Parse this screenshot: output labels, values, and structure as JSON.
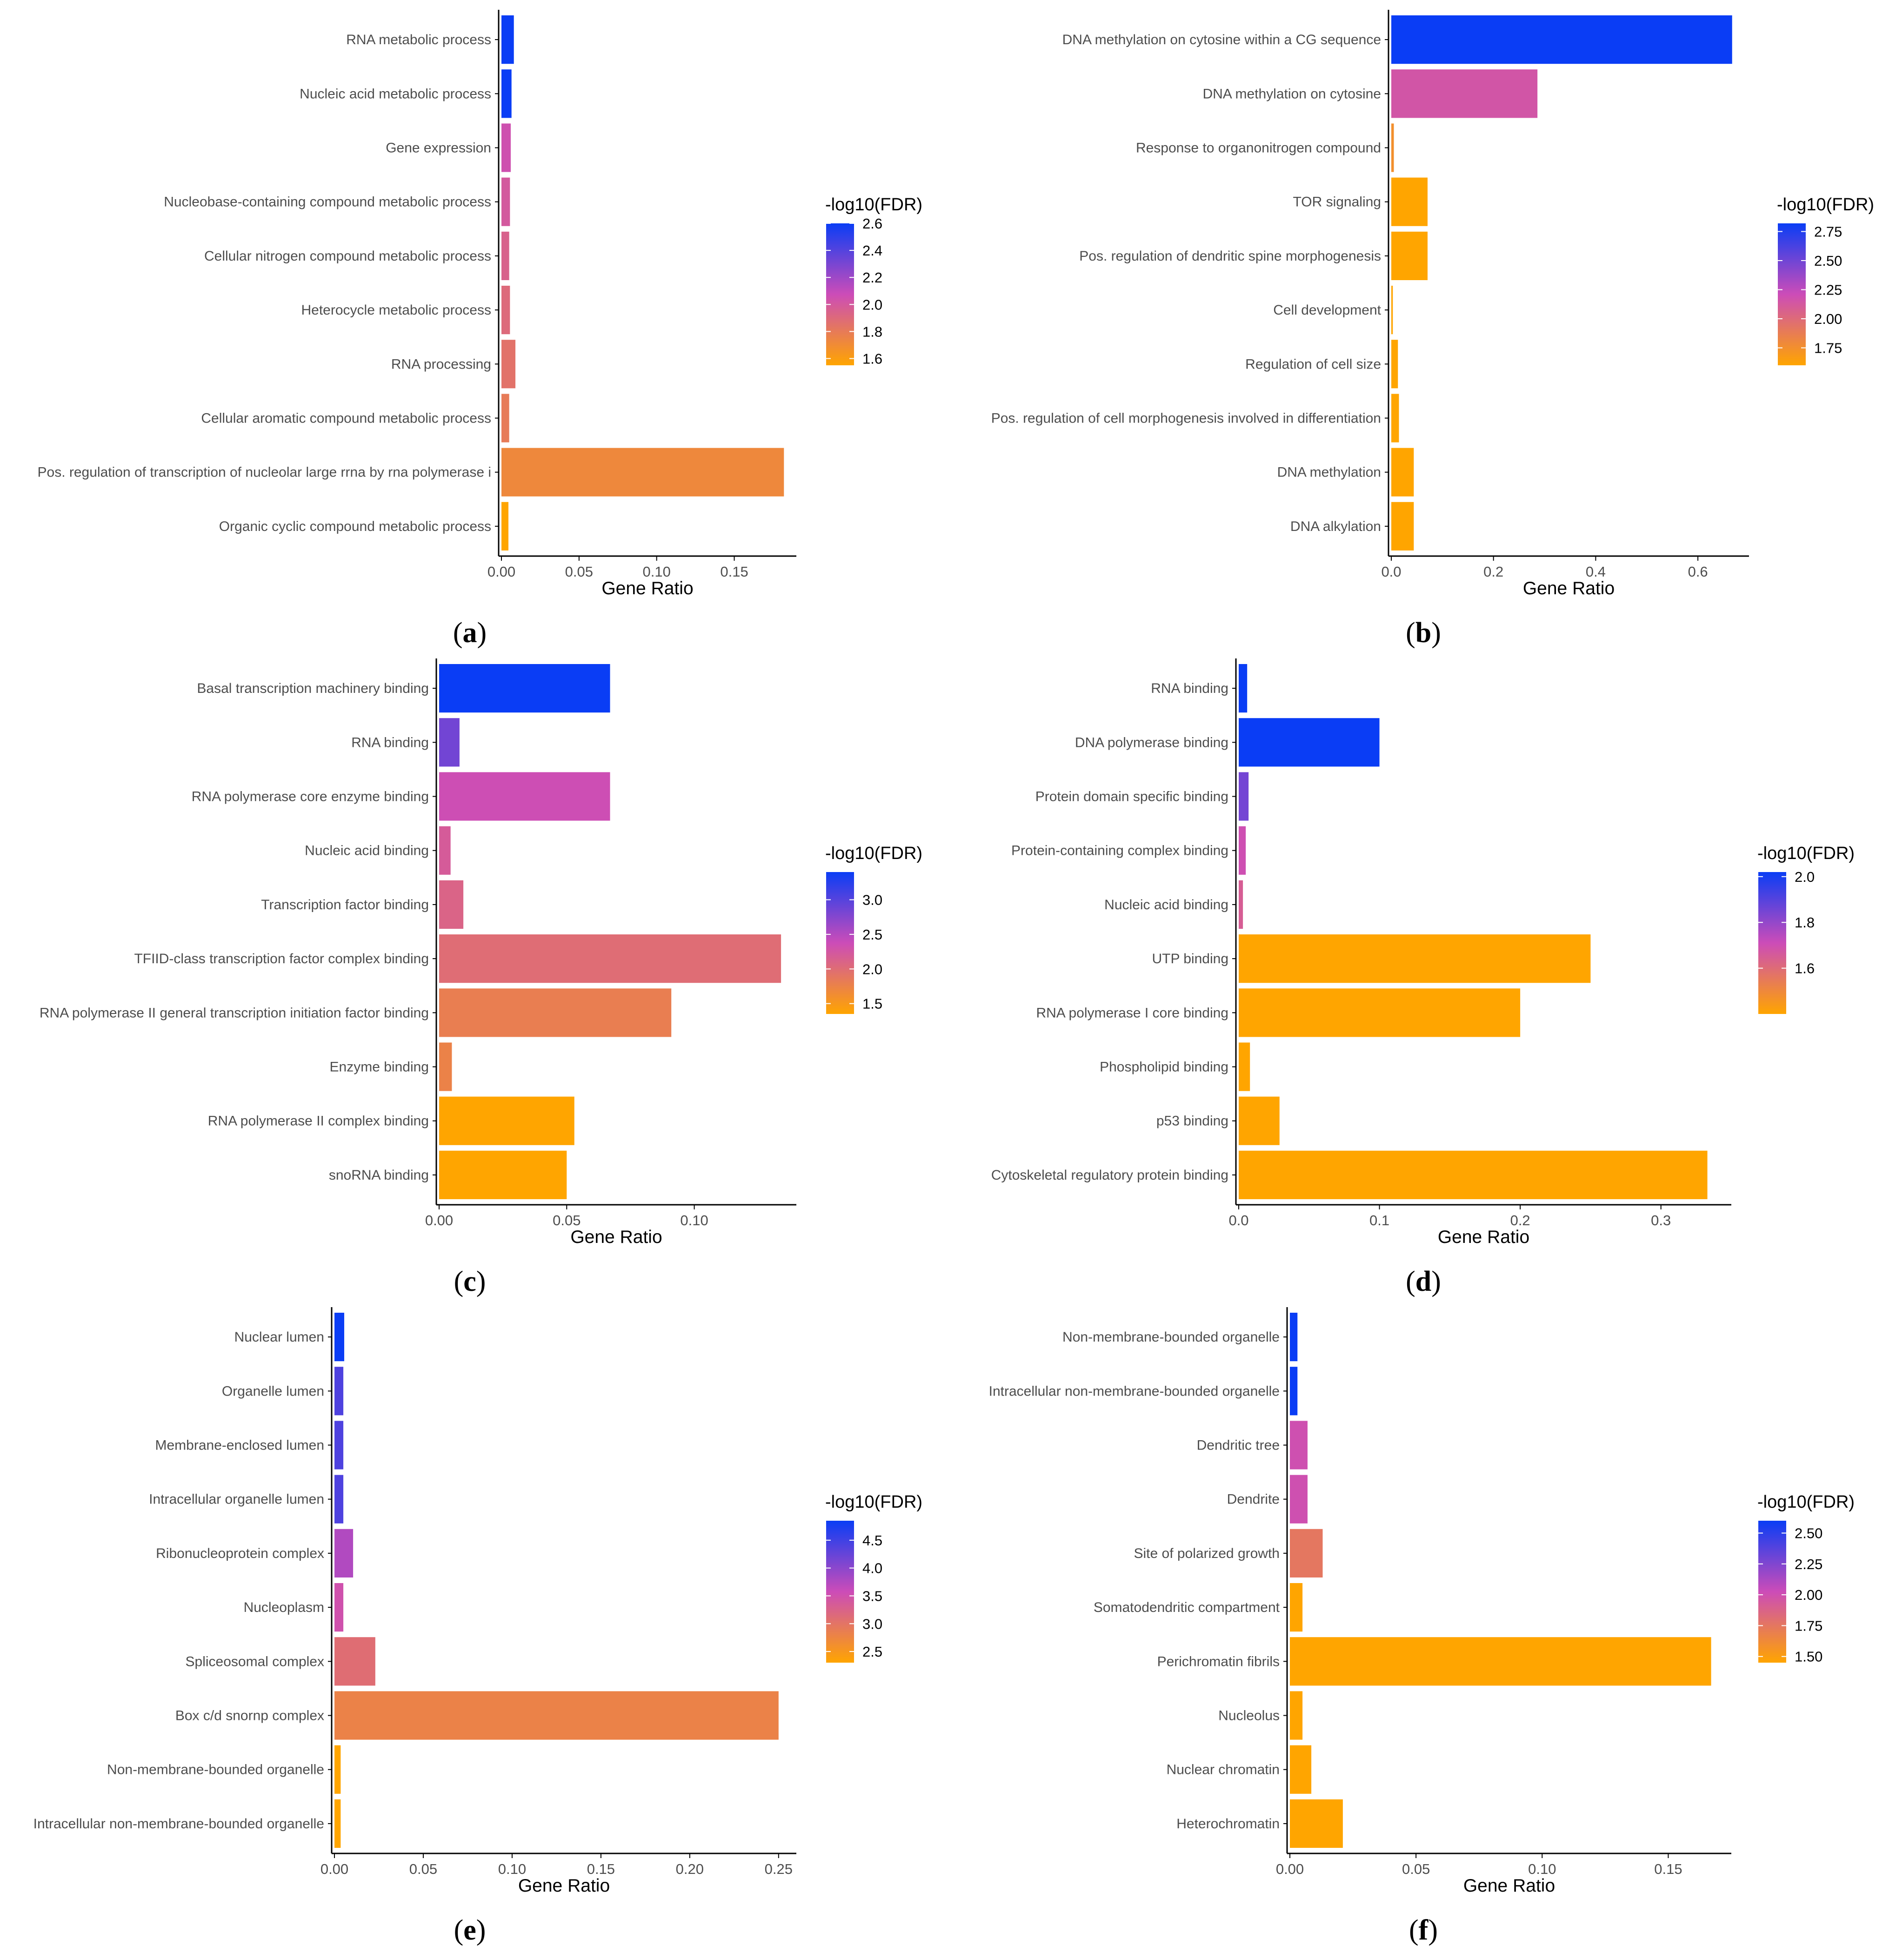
{
  "colors": {
    "scale_low": "#FFA500",
    "scale_mid": "#CC4CB8",
    "scale_high": "#0A3DF5",
    "axis": "#000000",
    "label": "#4d4d4d"
  },
  "chart_data": [
    {
      "id": "a",
      "type": "bar",
      "orientation": "horizontal",
      "panel_label": "a",
      "xlabel": "Gene Ratio",
      "ylabel": "",
      "xlim": [
        0,
        0.19
      ],
      "xticks": [
        0,
        0.05,
        0.1,
        0.15
      ],
      "xtick_labels": [
        "0.00",
        "0.05",
        "0.10",
        "0.15"
      ],
      "categories": [
        "RNA metabolic process",
        "Nucleic acid metabolic process",
        "Gene expression",
        "Nucleobase-containing compound metabolic process",
        "Cellular nitrogen compound metabolic process",
        "Heterocycle metabolic process",
        "RNA processing",
        "Cellular aromatic compound metabolic process",
        "Pos. regulation of transcription of nucleolar large rrna by rna polymerase i",
        "Organic cyclic compound metabolic process"
      ],
      "values": [
        0.008,
        0.0065,
        0.006,
        0.0055,
        0.005,
        0.0055,
        0.009,
        0.005,
        0.182,
        0.0045
      ],
      "color_values": [
        2.6,
        2.6,
        2.05,
        2.0,
        1.95,
        1.9,
        1.85,
        1.8,
        1.72,
        1.55
      ],
      "legend": {
        "title": "-log10(FDR)",
        "min": 1.55,
        "max": 2.6,
        "ticks": [
          1.6,
          1.8,
          2.0,
          2.2,
          2.4,
          2.6
        ],
        "tick_labels": [
          "1.6",
          "1.8",
          "2.0",
          "2.2",
          "2.4",
          "2.6"
        ]
      }
    },
    {
      "id": "b",
      "type": "bar",
      "orientation": "horizontal",
      "panel_label": "b",
      "xlabel": "Gene Ratio",
      "ylabel": "",
      "xlim": [
        0,
        0.7
      ],
      "xticks": [
        0,
        0.2,
        0.4,
        0.6
      ],
      "xtick_labels": [
        "0.0",
        "0.2",
        "0.4",
        "0.6"
      ],
      "categories": [
        "DNA methylation on cytosine within a CG sequence",
        "DNA methylation on cytosine",
        "Response to organonitrogen compound",
        "TOR signaling",
        "Pos. regulation of dendritic spine morphogenesis",
        "Cell development",
        "Regulation of cell size",
        "Pos. regulation of cell morphogenesis involved in differentiation",
        "DNA methylation",
        "DNA alkylation"
      ],
      "values": [
        0.667,
        0.286,
        0.005,
        0.071,
        0.071,
        0.003,
        0.013,
        0.015,
        0.044,
        0.044
      ],
      "color_values": [
        2.82,
        2.15,
        1.75,
        1.6,
        1.6,
        1.6,
        1.6,
        1.6,
        1.6,
        1.6
      ],
      "legend": {
        "title": "-log10(FDR)",
        "min": 1.6,
        "max": 2.82,
        "ticks": [
          1.75,
          2.0,
          2.25,
          2.5,
          2.75
        ],
        "tick_labels": [
          "1.75",
          "2.00",
          "2.25",
          "2.50",
          "2.75"
        ]
      }
    },
    {
      "id": "c",
      "type": "bar",
      "orientation": "horizontal",
      "panel_label": "c",
      "xlabel": "Gene Ratio",
      "ylabel": "",
      "xlim": [
        0,
        0.14
      ],
      "xticks": [
        0,
        0.05,
        0.1
      ],
      "xtick_labels": [
        "0.00",
        "0.05",
        "0.10"
      ],
      "categories": [
        "Basal transcription machinery binding",
        "RNA binding",
        "RNA polymerase core enzyme binding",
        "Nucleic acid binding",
        "Transcription factor binding",
        "TFIID-class transcription factor complex binding",
        "RNA polymerase II general transcription initiation factor binding",
        "Enzyme binding",
        "RNA polymerase II complex binding",
        "snoRNA binding"
      ],
      "values": [
        0.067,
        0.008,
        0.067,
        0.0045,
        0.0095,
        0.134,
        0.091,
        0.005,
        0.053,
        0.05
      ],
      "color_values": [
        3.4,
        2.85,
        2.35,
        2.2,
        2.1,
        2.0,
        1.8,
        1.75,
        1.35,
        1.35
      ],
      "legend": {
        "title": "-log10(FDR)",
        "min": 1.35,
        "max": 3.4,
        "ticks": [
          1.5,
          2.0,
          2.5,
          3.0
        ],
        "tick_labels": [
          "1.5",
          "2.0",
          "2.5",
          "3.0"
        ]
      }
    },
    {
      "id": "d",
      "type": "bar",
      "orientation": "horizontal",
      "panel_label": "d",
      "xlabel": "Gene Ratio",
      "ylabel": "",
      "xlim": [
        0,
        0.35
      ],
      "xticks": [
        0,
        0.1,
        0.2,
        0.3
      ],
      "xtick_labels": [
        "0.0",
        "0.1",
        "0.2",
        "0.3"
      ],
      "categories": [
        "RNA binding",
        "DNA polymerase binding",
        "Protein domain specific binding",
        "Protein-containing complex binding",
        "Nucleic acid binding",
        "UTP binding",
        "RNA polymerase I core binding",
        "Phospholipid binding",
        "p53 binding",
        "Cytoskeletal regulatory protein binding"
      ],
      "values": [
        0.006,
        0.1,
        0.007,
        0.005,
        0.003,
        0.25,
        0.2,
        0.008,
        0.029,
        0.333
      ],
      "color_values": [
        2.02,
        2.02,
        1.85,
        1.7,
        1.65,
        1.4,
        1.4,
        1.4,
        1.4,
        1.4
      ],
      "legend": {
        "title": "-log10(FDR)",
        "min": 1.4,
        "max": 2.02,
        "ticks": [
          1.6,
          1.8,
          2.0
        ],
        "tick_labels": [
          "1.6",
          "1.8",
          "2.0"
        ]
      }
    },
    {
      "id": "e",
      "type": "bar",
      "orientation": "horizontal",
      "panel_label": "e",
      "xlabel": "Gene Ratio",
      "ylabel": "",
      "xlim": [
        0,
        0.26
      ],
      "xticks": [
        0,
        0.05,
        0.1,
        0.15,
        0.2,
        0.25
      ],
      "xtick_labels": [
        "0.00",
        "0.05",
        "0.10",
        "0.15",
        "0.20",
        "0.25"
      ],
      "categories": [
        "Nuclear lumen",
        "Organelle lumen",
        "Membrane-enclosed lumen",
        "Intracellular organelle lumen",
        "Ribonucleoprotein complex",
        "Nucleoplasm",
        "Spliceosomal complex",
        "Box c/d snornp complex",
        "Non-membrane-bounded organelle",
        "Intracellular non-membrane-bounded organelle"
      ],
      "values": [
        0.0055,
        0.005,
        0.005,
        0.005,
        0.0105,
        0.005,
        0.023,
        0.25,
        0.0035,
        0.0035
      ],
      "color_values": [
        4.85,
        4.4,
        4.4,
        4.4,
        3.75,
        3.5,
        3.1,
        2.8,
        2.3,
        2.3
      ],
      "legend": {
        "title": "-log10(FDR)",
        "min": 2.3,
        "max": 4.85,
        "ticks": [
          2.5,
          3.0,
          3.5,
          4.0,
          4.5
        ],
        "tick_labels": [
          "2.5",
          "3.0",
          "3.5",
          "4.0",
          "4.5"
        ]
      }
    },
    {
      "id": "f",
      "type": "bar",
      "orientation": "horizontal",
      "panel_label": "f",
      "xlabel": "Gene Ratio",
      "ylabel": "",
      "xlim": [
        0,
        0.175
      ],
      "xticks": [
        0,
        0.05,
        0.1,
        0.15
      ],
      "xtick_labels": [
        "0.00",
        "0.05",
        "0.10",
        "0.15"
      ],
      "categories": [
        "Non-membrane-bounded organelle",
        "Intracellular non-membrane-bounded organelle",
        "Dendritic tree",
        "Dendrite",
        "Site of polarized growth",
        "Somatodendritic compartment",
        "Perichromatin fibrils",
        "Nucleolus",
        "Nuclear chromatin",
        "Heterochromatin"
      ],
      "values": [
        0.003,
        0.003,
        0.007,
        0.007,
        0.013,
        0.005,
        0.167,
        0.005,
        0.0085,
        0.021
      ],
      "color_values": [
        2.6,
        2.6,
        2.0,
        2.0,
        1.75,
        1.45,
        1.45,
        1.45,
        1.45,
        1.45
      ],
      "legend": {
        "title": "-log10(FDR)",
        "min": 1.45,
        "max": 2.6,
        "ticks": [
          1.5,
          1.75,
          2.0,
          2.25,
          2.5
        ],
        "tick_labels": [
          "1.50",
          "1.75",
          "2.00",
          "2.25",
          "2.50"
        ]
      }
    }
  ]
}
